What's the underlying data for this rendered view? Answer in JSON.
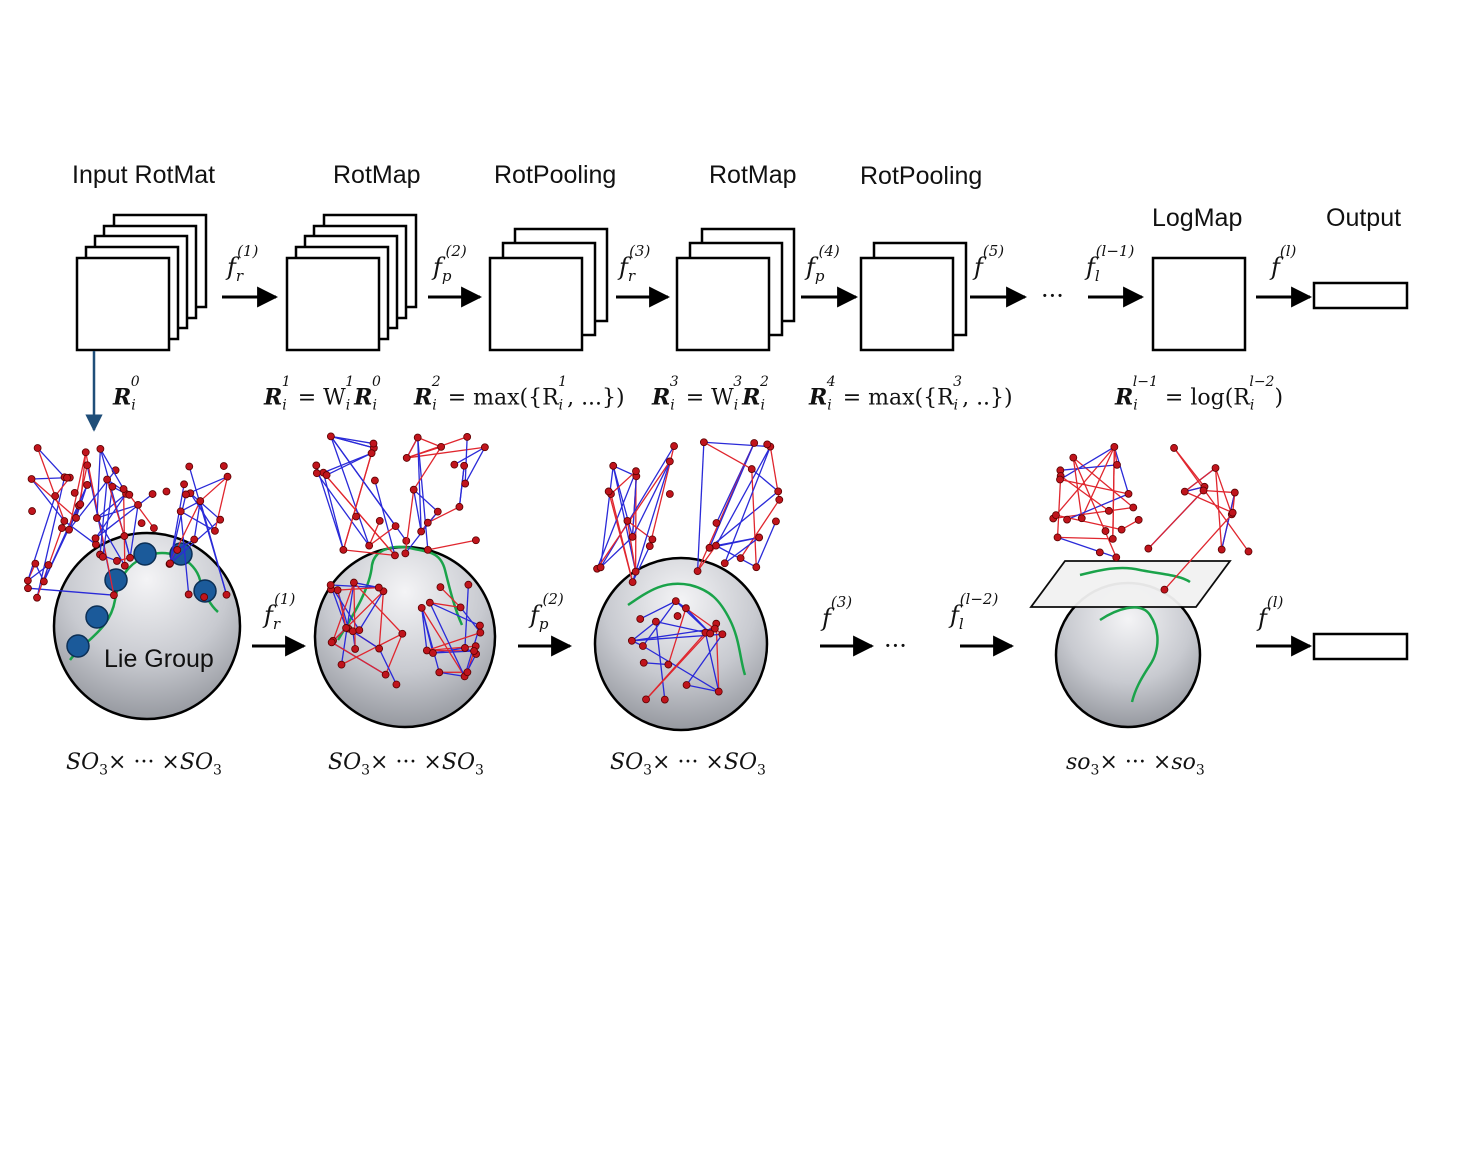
{
  "layers": {
    "input": "Input RotMat",
    "rotmap1": "RotMap",
    "rotpool1": "RotPooling",
    "rotmap2": "RotMap",
    "rotpool2": "RotPooling",
    "logmap": "LogMap",
    "output": "Output"
  },
  "functions": {
    "f1": {
      "base": "f",
      "sub": "r",
      "sup": "(1)"
    },
    "f2": {
      "base": "f",
      "sub": "p",
      "sup": "(2)"
    },
    "f3": {
      "base": "f",
      "sub": "r",
      "sup": "(3)"
    },
    "f4": {
      "base": "f",
      "sub": "p",
      "sup": "(4)"
    },
    "f5": {
      "base": "f",
      "sub": "",
      "sup": "(5)"
    },
    "flm1": {
      "base": "f",
      "sub": "l",
      "sup": "(l−1)"
    },
    "fl": {
      "base": "f",
      "sub": "",
      "sup": "(l)"
    },
    "ellipsis": "···"
  },
  "equations": {
    "r0": {
      "R": "R",
      "sub": "i",
      "sup": "0"
    },
    "r1": "= W",
    "r2": "= max({R",
    "r2_tail": ", ...})",
    "r3": "= W",
    "r4": "= max({R",
    "r4_tail": ", ..})",
    "rl": "= log(R"
  },
  "bottom_functions": {
    "g1": {
      "base": "f",
      "sub": "r",
      "sup": "(1)"
    },
    "g2": {
      "base": "f",
      "sub": "p",
      "sup": "(2)"
    },
    "g3": {
      "base": "f",
      "sub": "",
      "sup": "(3)"
    },
    "g4": {
      "base": "f",
      "sub": "l",
      "sup": "(l−2)"
    },
    "g5": {
      "base": "f",
      "sub": "",
      "sup": "(l)"
    },
    "ellipsis": "···"
  },
  "manifold_label": "Lie Group",
  "groups": {
    "so3_a": {
      "name": "SO",
      "sub": "3",
      "mid": "× ··· ×"
    },
    "lie_algebra": {
      "name": "so",
      "sub": "3",
      "mid": "× ··· ×"
    }
  },
  "colors": {
    "joint": "#c0141c",
    "bone_blue": "#2a2ad8",
    "bone_red": "#e0262e",
    "curve": "#1aa34a",
    "lie_point": "#1b5a9a",
    "r0_arrow": "#1f4e79"
  }
}
